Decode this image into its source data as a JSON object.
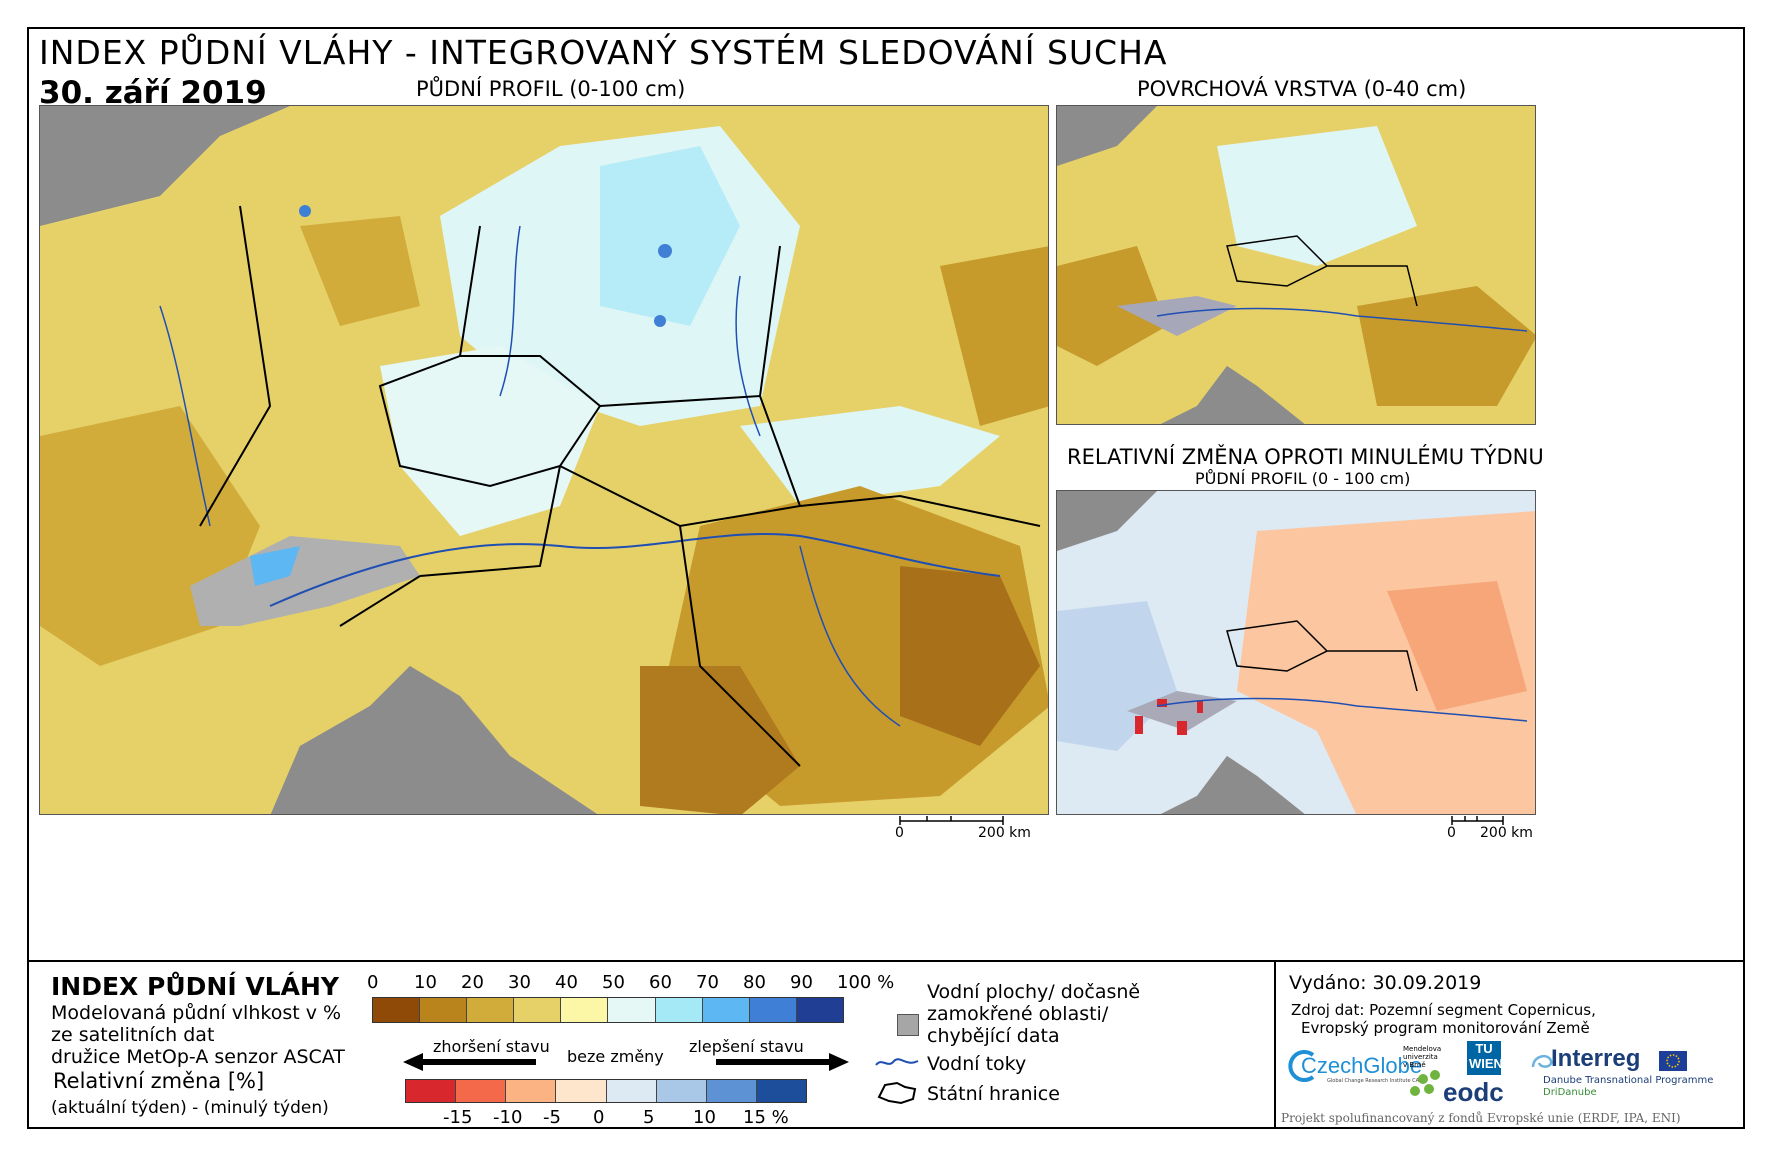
{
  "header": {
    "title": "INDEX PŮDNÍ VLÁHY - INTEGROVANÝ SYSTÉM SLEDOVÁNÍ SUCHA",
    "date": "30. září 2019"
  },
  "panels": {
    "main": {
      "label": "PŮDNÍ PROFIL (0-100 cm)",
      "scale_zero": "0",
      "scale_km": "200 km"
    },
    "surface": {
      "label": "POVRCHOVÁ VRSTVA (0-40 cm)"
    },
    "change": {
      "label": "RELATIVNÍ ZMĚNA OPROTI MINULÉMU TÝDNU",
      "sublabel": "PŮDNÍ PROFIL (0 - 100 cm)",
      "scale_zero": "0",
      "scale_km": "200 km"
    }
  },
  "legend": {
    "title": "INDEX PŮDNÍ VLÁHY",
    "desc_line1": "Modelovaná půdní vlhkost v %",
    "desc_line2": "ze satelitních dat",
    "desc_line3": "družice MetOp-A senzor ASCAT",
    "change_title": "Relativní změna [%]",
    "change_desc": "(aktuální týden) - (minulý týden)",
    "index_ticks": [
      "0",
      "10",
      "20",
      "30",
      "40",
      "50",
      "60",
      "70",
      "80",
      "90",
      "100 %"
    ],
    "index_colors": [
      "#8f4a07",
      "#b9841c",
      "#d2ac3b",
      "#e6d169",
      "#fbf7a6",
      "#e5f8f6",
      "#a5e9f7",
      "#5cb7f2",
      "#3f80d6",
      "#1f3e94"
    ],
    "arrow_left": "zhoršení stavu",
    "arrow_mid": "beze změny",
    "arrow_right": "zlepšení stavu",
    "change_ticks": [
      "-15",
      "-10",
      "-5",
      "0",
      "5",
      "10",
      "15 %"
    ],
    "change_colors": [
      "#d9272e",
      "#f4694a",
      "#fbb383",
      "#fde6cc",
      "#dde9f3",
      "#a9c8e7",
      "#5d92d4",
      "#1d4e9c"
    ],
    "water_label_1": "Vodní plochy/ dočasně",
    "water_label_2": "zamokřené oblasti/",
    "water_label_3": "chybějící data",
    "rivers_label": "Vodní toky",
    "borders_label": "Státní hranice"
  },
  "info": {
    "issued": "Vydáno: 30.09.2019",
    "source_line1": "Zdroj dat: Pozemní segment Copernicus,",
    "source_line2": "Evropský program monitorování Země",
    "footer": "Projekt spolufinancovaný z fondů Evropské unie (ERDF, IPA, ENI)",
    "logos": {
      "czechglobe": "CzechGlobe",
      "czechglobe_sub": "Global Change Research Institute CAS",
      "mendel": "Mendelova univerzita v Brně",
      "tuwien": "TU WIEN",
      "eodc": "eodc",
      "interreg": "Interreg",
      "interreg_sub1": "Danube Transnational Programme",
      "interreg_sub2": "DriDanube"
    }
  }
}
